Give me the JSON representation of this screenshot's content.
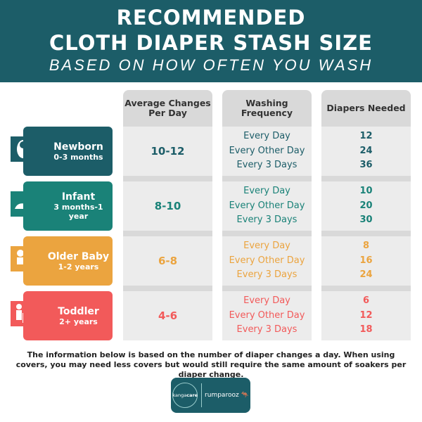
{
  "header": {
    "line1": "RECOMMENDED",
    "line2": "CLOTH DIAPER STASH SIZE",
    "line3": "BASED ON HOW OFTEN YOU WASH"
  },
  "columns": [
    "Average Changes Per Day",
    "Washing Frequency",
    "Diapers Needed"
  ],
  "rows": [
    {
      "name": "Newborn",
      "age": "0-3 months",
      "icon": "swaddled-baby-icon",
      "color": "#1c5d68",
      "changes": "10-12",
      "freq": [
        "Every Day",
        "Every Other Day",
        "Every 3 Days"
      ],
      "diapers": [
        "12",
        "24",
        "36"
      ]
    },
    {
      "name": "Infant",
      "age": "3 months-1 year",
      "icon": "crawling-baby-icon",
      "color": "#1a8278",
      "changes": "8-10",
      "freq": [
        "Every Day",
        "Every Other Day",
        "Every 3 Days"
      ],
      "diapers": [
        "10",
        "20",
        "30"
      ]
    },
    {
      "name": "Older Baby",
      "age": "1-2 years",
      "icon": "sitting-baby-icon",
      "color": "#eba43f",
      "changes": "6-8",
      "freq": [
        "Every Day",
        "Every Other Day",
        "Every 3 Days"
      ],
      "diapers": [
        "8",
        "16",
        "24"
      ]
    },
    {
      "name": "Toddler",
      "age": "2+ years",
      "icon": "toddler-potty-icon",
      "color": "#f25a5a",
      "changes": "4-6",
      "freq": [
        "Every Day",
        "Every Other Day",
        "Every 3 Days"
      ],
      "diapers": [
        "6",
        "12",
        "18"
      ]
    }
  ],
  "note": "The information below is based on the number of diaper changes a day. When using covers, you may need less covers but would still require the same amount of soakers per diaper change.",
  "logos": {
    "left": "kangacare",
    "right": "rumparooz"
  }
}
